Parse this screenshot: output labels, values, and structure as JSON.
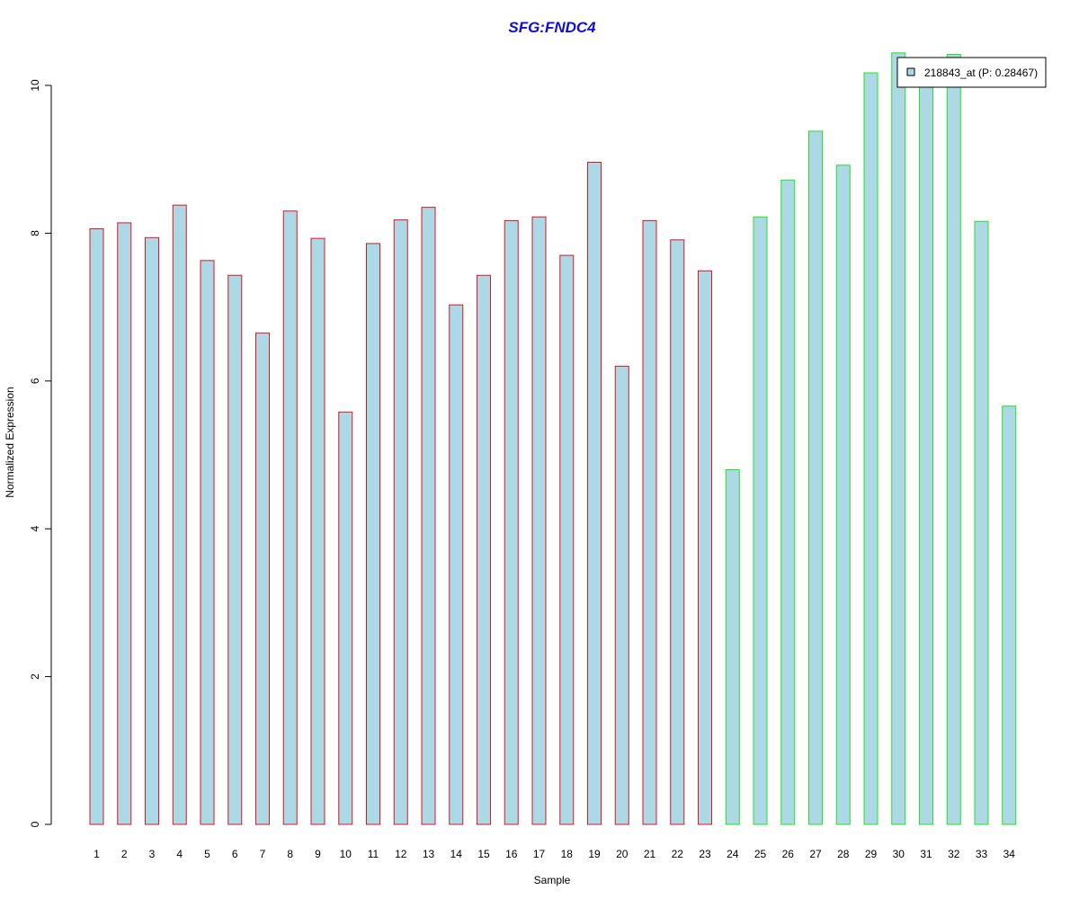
{
  "chart_data": {
    "type": "bar",
    "title": "SFG:FNDC4",
    "xlabel": "Sample",
    "ylabel": "Normalized Expression",
    "ylim": [
      0,
      10.5
    ],
    "yticks": [
      "0",
      "2",
      "4",
      "6",
      "8",
      "10"
    ],
    "categories": [
      "1",
      "2",
      "3",
      "4",
      "5",
      "6",
      "7",
      "8",
      "9",
      "10",
      "11",
      "12",
      "13",
      "14",
      "15",
      "16",
      "17",
      "18",
      "19",
      "20",
      "21",
      "22",
      "23",
      "24",
      "25",
      "26",
      "27",
      "28",
      "29",
      "30",
      "31",
      "32",
      "33",
      "34"
    ],
    "series": [
      {
        "name": "218843_at (P: 0.28467)",
        "values": [
          8.06,
          8.14,
          7.94,
          8.38,
          7.63,
          7.43,
          6.65,
          8.3,
          7.93,
          5.58,
          7.86,
          8.18,
          8.35,
          7.03,
          7.43,
          8.17,
          8.22,
          7.7,
          8.96,
          6.2,
          8.17,
          7.91,
          7.49,
          4.8,
          8.22,
          8.72,
          9.38,
          8.92,
          10.17,
          10.44,
          10.1,
          10.42,
          8.16,
          5.66
        ],
        "fill": "#add8e6",
        "group": [
          1,
          1,
          1,
          1,
          1,
          1,
          1,
          1,
          1,
          1,
          1,
          1,
          1,
          1,
          1,
          1,
          1,
          1,
          1,
          1,
          1,
          1,
          1,
          2,
          2,
          2,
          2,
          2,
          2,
          2,
          2,
          2,
          2,
          2
        ]
      }
    ],
    "group_colors": [
      "#e0151e",
      "#22e322"
    ],
    "legend": {
      "label": "218843_at (P: 0.28467)",
      "position": "top-right",
      "swatch": "#add8e6"
    },
    "title_color": "#1010d0",
    "grid": false
  }
}
